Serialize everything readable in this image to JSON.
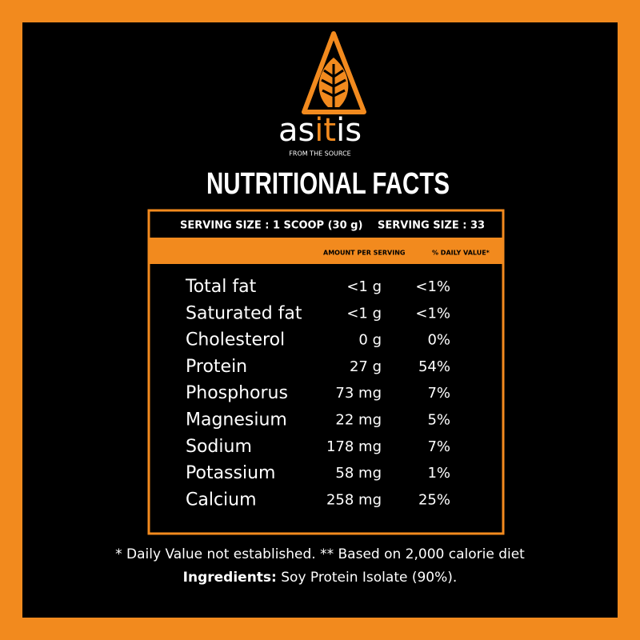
{
  "logo": {
    "brand": [
      "as",
      "it",
      "is"
    ],
    "tagline": "FROM THE SOURCE"
  },
  "title": "NUTRITIONAL FACTS",
  "table": {
    "serving": [
      "SERVING SIZE : 1 SCOOP (30 g)",
      "SERVING SIZE : 33"
    ],
    "columns": [
      "AMOUNT PER SERVING",
      "% DAILY VALUE*"
    ],
    "rows": [
      [
        "Total fat",
        "<1 g",
        "<1%"
      ],
      [
        "Saturated fat",
        "<1 g",
        "<1%"
      ],
      [
        "Cholesterol",
        "0 g",
        "0%"
      ],
      [
        "Protein",
        "27 g",
        "54%"
      ],
      [
        "Phosphorus",
        "73 mg",
        "7%"
      ],
      [
        "Magnesium",
        "22 mg",
        "5%"
      ],
      [
        "Sodium",
        "178 mg",
        "7%"
      ],
      [
        "Potassium",
        "58 mg",
        "1%"
      ],
      [
        "Calcium",
        "258 mg",
        "25%"
      ]
    ]
  },
  "footnote": "* Daily Value not established. ** Based on 2,000 calorie diet",
  "ingredients": {
    "label": "Ingredients:",
    "text": " Soy Protein Isolate (90%)."
  }
}
